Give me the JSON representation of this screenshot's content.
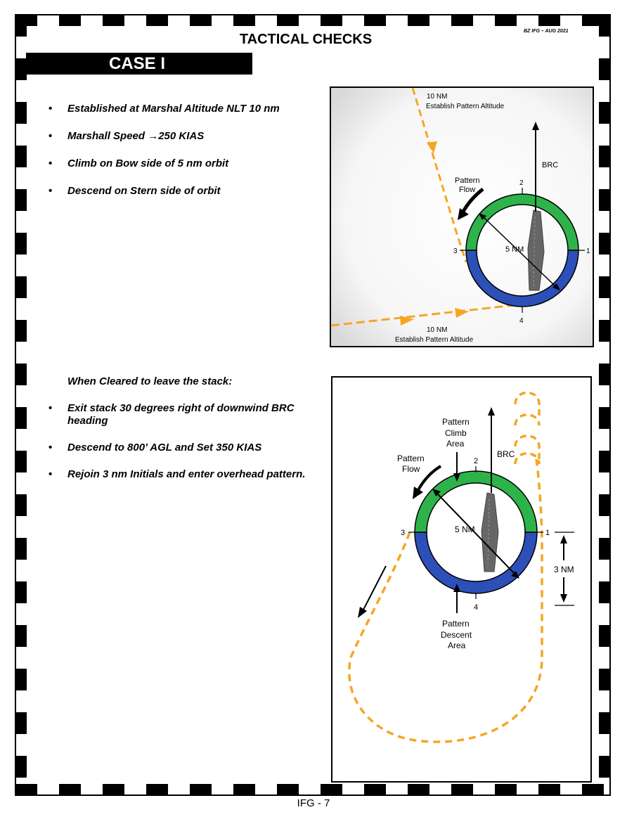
{
  "header": {
    "title": "TACTICAL CHECKS",
    "revision": "BZ IFG – AUG 2021"
  },
  "case_banner": "CASE I",
  "checks": {
    "items": [
      "Established at Marshal Altitude NLT 10 nm",
      "Marshall Speed →250 KIAS",
      "Climb on Bow side of 5 nm orbit",
      "Descend on Stern side of orbit"
    ]
  },
  "departure": {
    "heading": "When Cleared to leave the stack:",
    "items": [
      "Exit stack 30 degrees right of downwind BRC heading",
      "Descend to 800’ AGL and Set 350 KIAS",
      "Rejoin 3 nm Initials and enter overhead pattern."
    ]
  },
  "figure1": {
    "top_label_1": "10 NM",
    "top_label_2": "Establish Pattern Altitude",
    "bottom_label_1": "10 NM",
    "bottom_label_2": "Establish Pattern Altitude",
    "brc": "BRC",
    "flow_1": "Pattern",
    "flow_2": "Flow",
    "radius": "5 NM",
    "pt1": "1",
    "pt2": "2",
    "pt3": "3",
    "pt4": "4"
  },
  "figure2": {
    "climb_1": "Pattern",
    "climb_2": "Climb",
    "climb_3": "Area",
    "flow_1": "Pattern",
    "flow_2": "Flow",
    "brc": "BRC",
    "radius": "5 NM",
    "distance": "3 NM",
    "descent_1": "Pattern",
    "descent_2": "Descent",
    "descent_3": "Area",
    "pt1": "1",
    "pt2": "2",
    "pt3": "3",
    "pt4": "4"
  },
  "colors": {
    "bow_ring": "#2eb34a",
    "stern_ring": "#2d4fb8",
    "path": "#f5a623",
    "banner": "#000000"
  },
  "footer": {
    "page": "IFG - 7"
  }
}
